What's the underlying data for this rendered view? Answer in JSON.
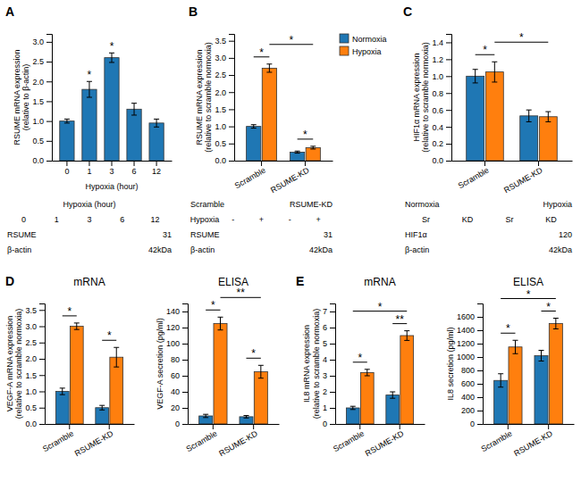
{
  "chart_data": [
    {
      "type": "bar",
      "title": "A",
      "categories": [
        "0",
        "1",
        "3",
        "6",
        "12"
      ],
      "values": [
        1.0,
        1.8,
        2.6,
        1.3,
        0.95
      ],
      "errors": [
        0.05,
        0.2,
        0.12,
        0.15,
        0.1
      ],
      "xlabel": "Hypoxia (hour)",
      "ylabel": "RSUME mRNA expression\n(relative to β-actin)",
      "ylim": [
        0,
        3.2
      ],
      "yticks": [
        {
          "value": 0,
          "label": "0.0"
        },
        0.5,
        {
          "value": 1,
          "label": "1.0"
        },
        1.5,
        {
          "value": 2,
          "label": "2.0"
        },
        2.5,
        {
          "value": 3,
          "label": "3.0"
        }
      ],
      "annotations": [
        {
          "text": "*",
          "category": "1"
        },
        {
          "text": "*",
          "category": "3"
        },
        [
          "Hypoxia (hour)"
        ],
        [
          "0",
          "1",
          "3",
          "6",
          "12"
        ],
        [
          "RSUME",
          "31"
        ],
        [
          "β-actin",
          "42kDa"
        ]
      ]
    },
    {
      "type": "bar",
      "title": "B",
      "categories": [
        "Scramble",
        "RSUME-KD"
      ],
      "series": [
        {
          "name": "Normoxia",
          "values": [
            1.0,
            0.25
          ],
          "errors": [
            0.05,
            0.03
          ]
        },
        {
          "name": "Hypoxia",
          "values": [
            2.7,
            0.38
          ],
          "errors": [
            0.12,
            0.04
          ]
        }
      ],
      "ylabel": "RSUME mRNA expression\n(relative to scramble normoxia)",
      "ylim": [
        0,
        3.7
      ],
      "yticks": [
        {
          "value": 0,
          "label": "0.0"
        },
        0.5,
        {
          "value": 1,
          "label": "1.0"
        },
        1.5,
        {
          "value": 2,
          "label": "2.0"
        },
        2.5,
        {
          "value": 3,
          "label": "3.0"
        },
        3.5
      ],
      "legend": "upper right",
      "annotations": [
        {
          "text": "*",
          "from": {
            "category": "Scramble",
            "series": "Hypoxia"
          },
          "to": {
            "category": "RSUME-KD",
            "series": "Hypoxia"
          }
        },
        {
          "text": "*",
          "from": {
            "category": "Scramble",
            "series": "Normoxia"
          },
          "to": {
            "category": "Scramble",
            "series": "Hypoxia"
          }
        },
        {
          "text": "*",
          "from": {
            "category": "RSUME-KD",
            "series": "Normoxia"
          },
          "to": {
            "category": "RSUME-KD",
            "series": "Hypoxia"
          }
        },
        [
          "Scramble",
          "RSUME-KD"
        ],
        [
          "Hypoxia",
          "-",
          "+",
          "-",
          "+"
        ],
        [
          "RSUME",
          "31"
        ],
        [
          "β-actin",
          "42kDa"
        ]
      ]
    },
    {
      "type": "bar",
      "title": "C",
      "categories": [
        "Scramble",
        "RSUME-KD"
      ],
      "series": [
        {
          "name": "Normoxia",
          "values": [
            1.0,
            0.53
          ],
          "errors": [
            0.08,
            0.07
          ]
        },
        {
          "name": "Hypoxia",
          "values": [
            1.05,
            0.52
          ],
          "errors": [
            0.12,
            0.06
          ]
        }
      ],
      "ylabel": "HIF1α mRNA expression\n(relative to scramble normoxia)",
      "ylim": [
        0,
        1.5
      ],
      "yticks": [
        {
          "value": 0,
          "label": "0.0"
        },
        0.2,
        0.4,
        0.6,
        0.8,
        {
          "value": 1,
          "label": "1.0"
        },
        1.2,
        1.4
      ],
      "annotations": [
        {
          "text": "*",
          "from": {
            "category": "Scramble",
            "series": "Hypoxia"
          },
          "to": {
            "category": "RSUME-KD",
            "series": "Hypoxia"
          }
        },
        {
          "text": "*",
          "from": {
            "category": "Scramble",
            "series": "Normoxia"
          },
          "to": {
            "category": "Scramble",
            "series": "Hypoxia"
          }
        },
        [
          "Normoxia",
          "Hypoxia"
        ],
        [
          "Sr",
          "KD",
          "Sr",
          "KD"
        ],
        [
          "HIF1α",
          "120"
        ],
        [
          "β-actin",
          "42kDa"
        ]
      ]
    },
    {
      "type": "bar",
      "title": "D",
      "subtitle": "mRNA",
      "categories": [
        "Scramble",
        "RSUME-KD"
      ],
      "series": [
        {
          "name": "Normoxia",
          "values": [
            1.0,
            0.5
          ],
          "errors": [
            0.1,
            0.07
          ]
        },
        {
          "name": "Hypoxia",
          "values": [
            3.0,
            2.05
          ],
          "errors": [
            0.1,
            0.3
          ]
        }
      ],
      "ylabel": "VEGF-A mRNA expression\n(relative to scramble normoxia)",
      "ylim": [
        0,
        3.7
      ],
      "yticks": [
        {
          "value": 0,
          "label": "0.0"
        },
        0.5,
        {
          "value": 1,
          "label": "1.0"
        },
        1.5,
        {
          "value": 2,
          "label": "2.0"
        },
        2.5,
        {
          "value": 3,
          "label": "3.0"
        },
        3.5
      ],
      "annotations": [
        {
          "text": "*",
          "from": {
            "category": "Scramble",
            "series": "Normoxia"
          },
          "to": {
            "category": "Scramble",
            "series": "Hypoxia"
          }
        },
        {
          "text": "*",
          "from": {
            "category": "RSUME-KD",
            "series": "Normoxia"
          },
          "to": {
            "category": "RSUME-KD",
            "series": "Hypoxia"
          }
        }
      ]
    },
    {
      "type": "bar",
      "subtitle": "ELISA",
      "categories": [
        "Scramble",
        "RSUME-KD"
      ],
      "series": [
        {
          "name": "Normoxia",
          "values": [
            10.0,
            9.0
          ],
          "errors": [
            2.0,
            1.5
          ]
        },
        {
          "name": "Hypoxia",
          "values": [
            125.0,
            65.0
          ],
          "errors": [
            8.0,
            8.0
          ]
        }
      ],
      "ylabel": "VEGF-A secretion (pg/ml)",
      "ylim": [
        0,
        150
      ],
      "yticks": [
        0,
        20,
        40,
        60,
        80,
        100,
        120,
        140
      ],
      "annotations": [
        {
          "text": "**",
          "from": {
            "category": "Scramble",
            "series": "Hypoxia"
          },
          "to": {
            "category": "RSUME-KD",
            "series": "Hypoxia"
          }
        },
        {
          "text": "*",
          "from": {
            "category": "Scramble",
            "series": "Normoxia"
          },
          "to": {
            "category": "Scramble",
            "series": "Hypoxia"
          }
        },
        {
          "text": "*",
          "from": {
            "category": "RSUME-KD",
            "series": "Normoxia"
          },
          "to": {
            "category": "RSUME-KD",
            "series": "Hypoxia"
          }
        }
      ]
    },
    {
      "type": "bar",
      "title": "E",
      "subtitle": "mRNA",
      "categories": [
        "Scramble",
        "RSUME-KD"
      ],
      "series": [
        {
          "name": "Normoxia",
          "values": [
            1.0,
            1.8
          ],
          "errors": [
            0.1,
            0.2
          ]
        },
        {
          "name": "Hypoxia",
          "values": [
            3.2,
            5.5
          ],
          "errors": [
            0.2,
            0.3
          ]
        }
      ],
      "ylabel": "IL8 mRNA expression\n(relative to scramble normoxia)",
      "ylim": [
        0,
        7.5
      ],
      "yticks": [
        0,
        1,
        2,
        3,
        4,
        5,
        6,
        7
      ],
      "annotations": [
        {
          "text": "*",
          "from": {
            "category": "Scramble",
            "series": "Normoxia"
          },
          "to": {
            "category": "RSUME-KD",
            "series": "Hypoxia"
          }
        },
        {
          "text": "*",
          "from": {
            "category": "Scramble",
            "series": "Normoxia"
          },
          "to": {
            "category": "Scramble",
            "series": "Hypoxia"
          }
        },
        {
          "text": "**",
          "from": {
            "category": "RSUME-KD",
            "series": "Normoxia"
          },
          "to": {
            "category": "RSUME-KD",
            "series": "Hypoxia"
          }
        }
      ]
    },
    {
      "type": "bar",
      "subtitle": "ELISA",
      "categories": [
        "Scramble",
        "RSUME-KD"
      ],
      "series": [
        {
          "name": "Normoxia",
          "values": [
            650.0,
            1020.0
          ],
          "errors": [
            100.0,
            80.0
          ]
        },
        {
          "name": "Hypoxia",
          "values": [
            1150.0,
            1500.0
          ],
          "errors": [
            100.0,
            80.0
          ]
        }
      ],
      "ylabel": "IL8 secretion (pg/ml)",
      "ylim": [
        0,
        1800
      ],
      "yticks": [
        0,
        200,
        400,
        600,
        800,
        1000,
        1200,
        1400,
        1600
      ],
      "annotations": [
        {
          "text": "*",
          "from": {
            "category": "Scramble",
            "series": "Normoxia"
          },
          "to": {
            "category": "RSUME-KD",
            "series": "Hypoxia"
          }
        },
        {
          "text": "*",
          "from": {
            "category": "Scramble",
            "series": "Normoxia"
          },
          "to": {
            "category": "Scramble",
            "series": "Hypoxia"
          }
        },
        {
          "text": "*",
          "from": {
            "category": "RSUME-KD",
            "series": "Normoxia"
          },
          "to": {
            "category": "RSUME-KD",
            "series": "Hypoxia"
          }
        }
      ]
    }
  ]
}
